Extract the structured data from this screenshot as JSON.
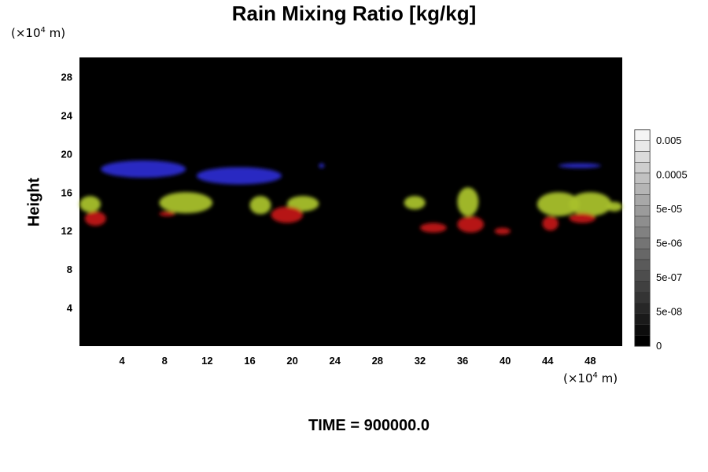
{
  "chart_data": {
    "type": "heatmap",
    "title": "Rain Mixing Ratio [kg/kg]",
    "ylabel": "Height",
    "x_unit": {
      "prefix": "(×10",
      "exp": "4",
      "suffix": " m)"
    },
    "y_unit": {
      "prefix": "(×10",
      "exp": "4",
      "suffix": " m)"
    },
    "xlim": [
      0,
      51
    ],
    "ylim": [
      0,
      30
    ],
    "x_ticks": [
      4,
      8,
      12,
      16,
      20,
      24,
      28,
      32,
      36,
      40,
      44,
      48
    ],
    "y_ticks": [
      4,
      8,
      12,
      16,
      20,
      24,
      28
    ],
    "background_color": "#000000",
    "colorbar": {
      "labels": [
        "0.005",
        "0.0005",
        "5e-05",
        "5e-06",
        "5e-07",
        "5e-08",
        "0"
      ],
      "levels": 20
    },
    "footer": "TIME = 900000.0",
    "colors": {
      "blue": "#2a2acc",
      "yellow_green": "#a8c02a",
      "green": "#4ab520",
      "red": "#c01818"
    },
    "features": [
      {
        "name": "blue-layer-west",
        "color": "blue",
        "x": [
          2,
          10
        ],
        "y": [
          17.5,
          19.3
        ]
      },
      {
        "name": "blue-layer-central",
        "color": "blue",
        "x": [
          11,
          19
        ],
        "y": [
          16.8,
          18.6
        ]
      },
      {
        "name": "blue-fleck",
        "color": "blue",
        "x": [
          22.5,
          23
        ],
        "y": [
          18.5,
          19
        ]
      },
      {
        "name": "blue-fleck-east",
        "color": "blue",
        "x": [
          45,
          49
        ],
        "y": [
          18.5,
          19
        ]
      },
      {
        "name": "green-cell-1",
        "color": "yellow_green",
        "x": [
          0,
          2
        ],
        "y": [
          13.9,
          15.6
        ]
      },
      {
        "name": "green-cell-2",
        "color": "yellow_green",
        "x": [
          7.5,
          12.5
        ],
        "y": [
          13.8,
          16
        ]
      },
      {
        "name": "green-cell-3",
        "color": "yellow_green",
        "x": [
          16,
          18
        ],
        "y": [
          13.7,
          15.6
        ]
      },
      {
        "name": "green-cell-4",
        "color": "yellow_green",
        "x": [
          19.5,
          22.5
        ],
        "y": [
          14,
          15.6
        ]
      },
      {
        "name": "green-cell-5",
        "color": "yellow_green",
        "x": [
          30.5,
          32.5
        ],
        "y": [
          14.2,
          15.6
        ]
      },
      {
        "name": "green-cell-6",
        "color": "yellow_green",
        "x": [
          35.5,
          37.5
        ],
        "y": [
          13.5,
          16.5
        ]
      },
      {
        "name": "green-cell-7",
        "color": "yellow_green",
        "x": [
          43,
          47
        ],
        "y": [
          13.5,
          16
        ]
      },
      {
        "name": "green-cell-8",
        "color": "yellow_green",
        "x": [
          46,
          50
        ],
        "y": [
          13.5,
          16
        ]
      },
      {
        "name": "green-cell-9",
        "color": "yellow_green",
        "x": [
          49.5,
          51
        ],
        "y": [
          14,
          15
        ]
      },
      {
        "name": "red-cell-1",
        "color": "red",
        "x": [
          0.5,
          2.5
        ],
        "y": [
          12.5,
          14
        ]
      },
      {
        "name": "red-cell-2",
        "color": "red",
        "x": [
          7.5,
          9
        ],
        "y": [
          13.5,
          14
        ]
      },
      {
        "name": "red-cell-3",
        "color": "red",
        "x": [
          18,
          21
        ],
        "y": [
          12.8,
          14.5
        ]
      },
      {
        "name": "red-cell-4",
        "color": "red",
        "x": [
          32,
          34.5
        ],
        "y": [
          11.8,
          12.8
        ]
      },
      {
        "name": "red-cell-5",
        "color": "red",
        "x": [
          35.5,
          38
        ],
        "y": [
          11.8,
          13.5
        ]
      },
      {
        "name": "red-cell-6",
        "color": "red",
        "x": [
          39,
          40.5
        ],
        "y": [
          11.6,
          12.3
        ]
      },
      {
        "name": "red-cell-7",
        "color": "red",
        "x": [
          43.5,
          45
        ],
        "y": [
          12,
          13.5
        ]
      },
      {
        "name": "red-cell-8",
        "color": "red",
        "x": [
          46,
          48.5
        ],
        "y": [
          12.8,
          13.8
        ]
      }
    ]
  }
}
